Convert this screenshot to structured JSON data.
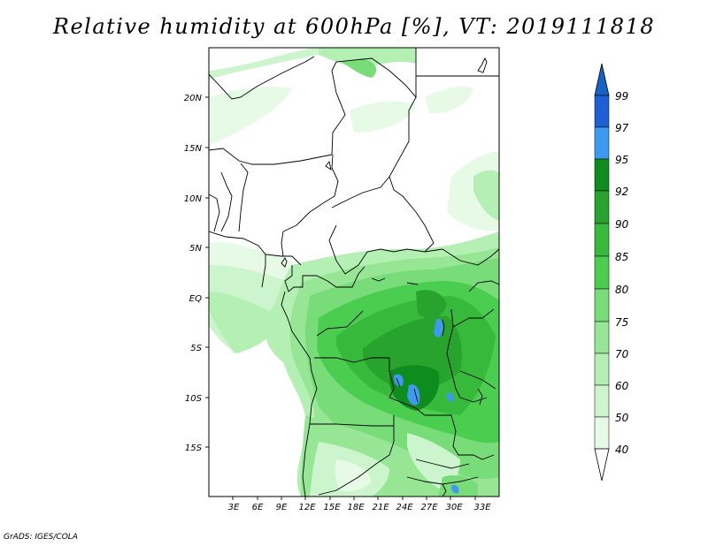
{
  "title": "Relative humidity at 600hPa [%], VT: 2019111818",
  "footer": "GrADS: IGES/COLA",
  "map": {
    "lon_range": [
      0,
      36
    ],
    "lat_range": [
      -20,
      25
    ],
    "lon_ticks": [
      "3E",
      "6E",
      "9E",
      "12E",
      "15E",
      "18E",
      "21E",
      "24E",
      "27E",
      "30E",
      "33E"
    ],
    "lat_ticks": [
      "20N",
      "15N",
      "10N",
      "5N",
      "EQ",
      "5S",
      "10S",
      "15S"
    ]
  },
  "colorbar": {
    "levels": [
      "99",
      "97",
      "95",
      "92",
      "90",
      "85",
      "80",
      "75",
      "70",
      "60",
      "50",
      "40"
    ],
    "colors": [
      "#1e5fd6",
      "#1e78e6",
      "#3c9bf0",
      "#0f8c1e",
      "#28a32d",
      "#37b93c",
      "#4bcd50",
      "#78dc78",
      "#96e696",
      "#b4f0b4",
      "#cdf5cd",
      "#e6fae6",
      "#ffffff",
      "#1464c8"
    ]
  }
}
